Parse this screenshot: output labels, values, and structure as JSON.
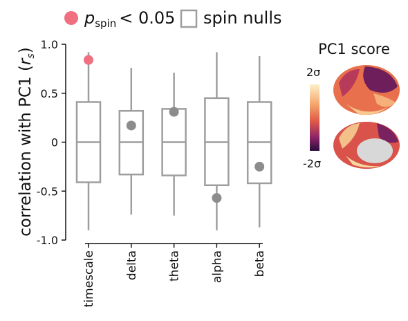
{
  "chart_data": {
    "type": "box",
    "legend": {
      "marker_symbol": "p",
      "marker_subscript": "spin",
      "marker_text": "< 0.05",
      "marker_color": "#f07080",
      "box_label": "spin nulls"
    },
    "ylabel": {
      "text": "correlation with PC1 (",
      "symbol": "r",
      "subscript": "s",
      "close": ")"
    },
    "categories": [
      "timescale",
      "delta",
      "theta",
      "alpha",
      "beta"
    ],
    "boxes": [
      {
        "whislo": -0.9,
        "q1": -0.41,
        "med": 0,
        "q3": 0.41,
        "whishi": 0.92
      },
      {
        "whislo": -0.74,
        "q1": -0.33,
        "med": 0,
        "q3": 0.32,
        "whishi": 0.76
      },
      {
        "whislo": -0.75,
        "q1": -0.34,
        "med": 0,
        "q3": 0.34,
        "whishi": 0.71
      },
      {
        "whislo": -0.9,
        "q1": -0.44,
        "med": 0,
        "q3": 0.45,
        "whishi": 0.92
      },
      {
        "whislo": -0.87,
        "q1": -0.42,
        "med": 0,
        "q3": 0.41,
        "whishi": 0.88
      }
    ],
    "box_color": "#9e9e9e",
    "points": [
      0.84,
      0.17,
      0.31,
      -0.57,
      -0.25
    ],
    "point_colors": [
      "#f07080",
      "#8c8c8c",
      "#8c8c8c",
      "#8c8c8c",
      "#8c8c8c"
    ],
    "ylim": [
      -1,
      1
    ],
    "yticks": [
      {
        "value": 1,
        "label": "1.0"
      },
      0.5,
      0,
      -0.5,
      {
        "value": -1,
        "label": "-1.0"
      }
    ],
    "inset": {
      "title": "PC1 score",
      "colorbar_max": "2σ",
      "colorbar_min": "-2σ"
    }
  }
}
